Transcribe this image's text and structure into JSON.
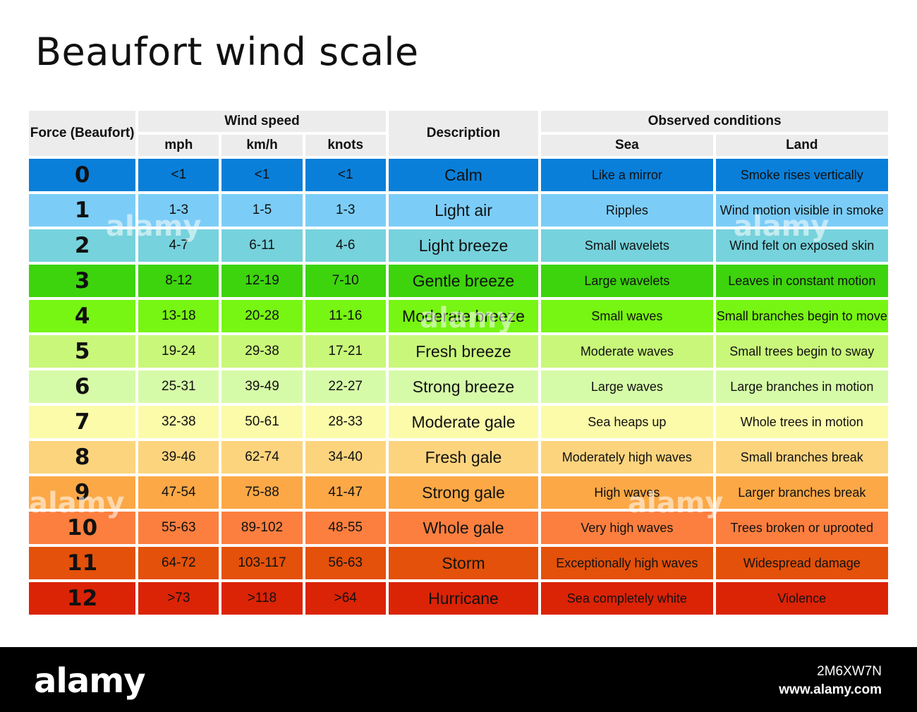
{
  "title": "Beaufort wind scale",
  "headers": {
    "force": "Force (Beaufort)",
    "wind_speed": "Wind speed",
    "mph": "mph",
    "kmh": "km/h",
    "knots": "knots",
    "description": "Description",
    "observed": "Observed conditions",
    "sea": "Sea",
    "land": "Land"
  },
  "rows": [
    {
      "force": "0",
      "mph": "<1",
      "kmh": "<1",
      "knots": "<1",
      "description": "Calm",
      "sea": "Like a mirror",
      "land": "Smoke rises vertically",
      "color": "#0a7fd9"
    },
    {
      "force": "1",
      "mph": "1-3",
      "kmh": "1-5",
      "knots": "1-3",
      "description": "Light air",
      "sea": "Ripples",
      "land": "Wind motion visible in smoke",
      "color": "#7bcdf7"
    },
    {
      "force": "2",
      "mph": "4-7",
      "kmh": "6-11",
      "knots": "4-6",
      "description": "Light breeze",
      "sea": "Small wavelets",
      "land": "Wind felt on exposed skin",
      "color": "#76d2dc"
    },
    {
      "force": "3",
      "mph": "8-12",
      "kmh": "12-19",
      "knots": "7-10",
      "description": "Gentle breeze",
      "sea": "Large wavelets",
      "land": "Leaves in constant motion",
      "color": "#3dd30d"
    },
    {
      "force": "4",
      "mph": "13-18",
      "kmh": "20-28",
      "knots": "11-16",
      "description": "Moderate breeze",
      "sea": "Small waves",
      "land": "Small branches begin to move",
      "color": "#77f513"
    },
    {
      "force": "5",
      "mph": "19-24",
      "kmh": "29-38",
      "knots": "17-21",
      "description": "Fresh breeze",
      "sea": "Moderate waves",
      "land": "Small trees begin to sway",
      "color": "#c9f77a"
    },
    {
      "force": "6",
      "mph": "25-31",
      "kmh": "39-49",
      "knots": "22-27",
      "description": "Strong breeze",
      "sea": "Large waves",
      "land": "Large branches in motion",
      "color": "#d6fba8"
    },
    {
      "force": "7",
      "mph": "32-38",
      "kmh": "50-61",
      "knots": "28-33",
      "description": "Moderate gale",
      "sea": "Sea heaps up",
      "land": "Whole trees in motion",
      "color": "#fcfba9"
    },
    {
      "force": "8",
      "mph": "39-46",
      "kmh": "62-74",
      "knots": "34-40",
      "description": "Fresh gale",
      "sea": "Moderately high waves",
      "land": "Small branches break",
      "color": "#fdd47e"
    },
    {
      "force": "9",
      "mph": "47-54",
      "kmh": "75-88",
      "knots": "41-47",
      "description": "Strong gale",
      "sea": "High waves",
      "land": "Larger branches break",
      "color": "#fca846"
    },
    {
      "force": "10",
      "mph": "55-63",
      "kmh": "89-102",
      "knots": "48-55",
      "description": "Whole gale",
      "sea": "Very high waves",
      "land": "Trees broken or uprooted",
      "color": "#fc7f3f"
    },
    {
      "force": "11",
      "mph": "64-72",
      "kmh": "103-117",
      "knots": "56-63",
      "description": "Storm",
      "sea": "Exceptionally high waves",
      "land": "Widespread damage",
      "color": "#e3510a"
    },
    {
      "force": "12",
      "mph": ">73",
      "kmh": ">118",
      "knots": ">64",
      "description": "Hurricane",
      "sea": "Sea completely white",
      "land": "Violence",
      "color": "#db2306"
    }
  ],
  "footer": {
    "logo": "alamy",
    "image_id": "2M6XW7N",
    "site": "www.alamy.com"
  },
  "watermark": "alamy"
}
